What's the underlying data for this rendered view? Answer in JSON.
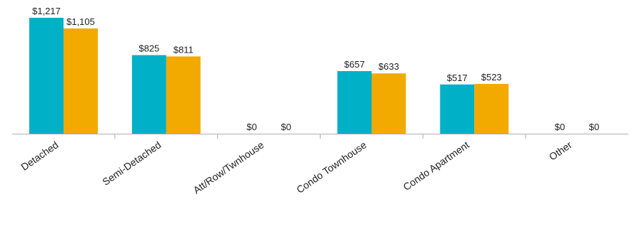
{
  "chart_data": {
    "type": "bar",
    "categories": [
      "Detached",
      "Semi-Detached",
      "Att/Row/Twnhouse",
      "Condo Townhouse",
      "Condo Apartment",
      "Other"
    ],
    "series": [
      {
        "values": [
          1217,
          825,
          0,
          657,
          517,
          0
        ],
        "labels": [
          "$1,217",
          "$825",
          "$0",
          "$657",
          "$517",
          "$0"
        ],
        "color": "#00b0c7"
      },
      {
        "values": [
          1105,
          811,
          0,
          633,
          523,
          0
        ],
        "labels": [
          "$1,105",
          "$811",
          "$0",
          "$633",
          "$523",
          "$0"
        ],
        "color": "#f2a900"
      }
    ],
    "ylim": [
      0,
      1217
    ],
    "grid": false,
    "legend": "none",
    "axis_color": "#b0b0b0"
  }
}
